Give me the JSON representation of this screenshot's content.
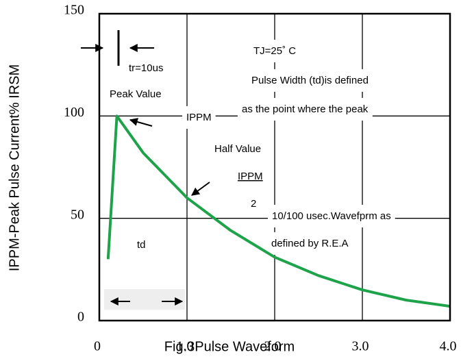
{
  "chart_data": {
    "type": "line",
    "title": "Fig.3Pulse Waveform",
    "y_label": "IPPM-Peak Pulse Current% IRSM",
    "x": [
      0.1,
      0.2,
      0.5,
      1.0,
      1.5,
      2.0,
      2.5,
      3.0,
      3.5,
      4.0
    ],
    "series": [
      {
        "color": "#1fa34a",
        "values": [
          30,
          100,
          82,
          60,
          44,
          31,
          22,
          15,
          10,
          7
        ]
      }
    ],
    "xlim": [
      0,
      4
    ],
    "xticks": [
      0,
      {
        "value": 1,
        "label": "1.0"
      },
      {
        "value": 2,
        "label": "2.0"
      },
      {
        "value": 3,
        "label": "3.0"
      },
      {
        "value": 4,
        "label": "4.0"
      }
    ],
    "ylim": [
      0,
      150
    ],
    "yticks": [
      0,
      50,
      100,
      150
    ],
    "grid": true,
    "annotations": [
      "tr=10us",
      "TJ=25˚ C",
      "Pulse Width (td)is defined",
      "as the point where the peak",
      "Peak Value",
      "IPPM",
      "Half Value",
      "IPPM",
      "2",
      "10/100 usec.Wavefprm as",
      "defined by R.E.A",
      "td"
    ]
  }
}
